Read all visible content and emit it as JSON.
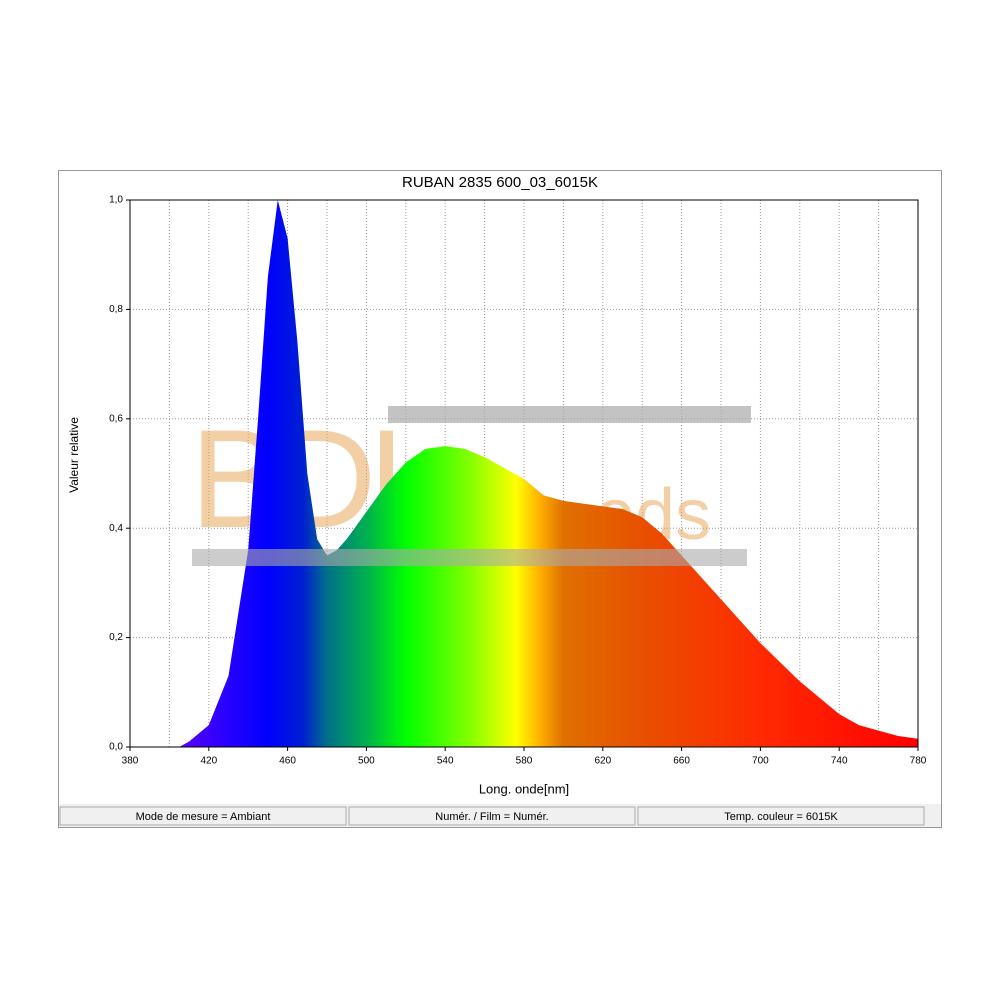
{
  "chart_data": {
    "type": "area",
    "title": "RUBAN 2835 600_03_6015K",
    "x_label": "Long. onde[nm]",
    "y_label": "Valeur relative",
    "x": [
      400,
      405,
      410,
      420,
      430,
      440,
      445,
      450,
      455,
      460,
      465,
      470,
      475,
      480,
      485,
      490,
      500,
      510,
      520,
      530,
      540,
      550,
      560,
      570,
      580,
      590,
      600,
      610,
      620,
      630,
      640,
      650,
      660,
      670,
      680,
      690,
      700,
      710,
      720,
      730,
      740,
      750,
      760,
      770,
      780
    ],
    "values": [
      0,
      0,
      0.01,
      0.04,
      0.13,
      0.36,
      0.6,
      0.86,
      1.0,
      0.93,
      0.74,
      0.5,
      0.38,
      0.35,
      0.36,
      0.38,
      0.43,
      0.48,
      0.52,
      0.545,
      0.55,
      0.545,
      0.53,
      0.51,
      0.49,
      0.46,
      0.45,
      0.445,
      0.44,
      0.435,
      0.42,
      0.39,
      0.35,
      0.31,
      0.27,
      0.23,
      0.19,
      0.155,
      0.12,
      0.09,
      0.06,
      0.04,
      0.03,
      0.02,
      0.015
    ],
    "xlim": [
      380,
      780
    ],
    "ylim": [
      0,
      1
    ],
    "xticks": [
      380,
      420,
      460,
      500,
      540,
      580,
      620,
      660,
      700,
      740,
      780
    ],
    "x_minor_grid": [
      400,
      440,
      480,
      520,
      560,
      600,
      640,
      680,
      720,
      760
    ],
    "yticks": [
      {
        "value": 0,
        "label": "0,0"
      },
      {
        "value": 0.2,
        "label": "0,2"
      },
      {
        "value": 0.4,
        "label": "0,4"
      },
      {
        "value": 0.6,
        "label": "0,6"
      },
      {
        "value": 0.8,
        "label": "0,8"
      },
      {
        "value": 1,
        "label": "1,0"
      }
    ],
    "grid": true,
    "watermark": [
      "BDL",
      "eds"
    ]
  },
  "status_bar": [
    "Mode de mesure = Ambiant",
    "Numér. / Film = Numér.",
    "Temp. couleur = 6015K"
  ]
}
